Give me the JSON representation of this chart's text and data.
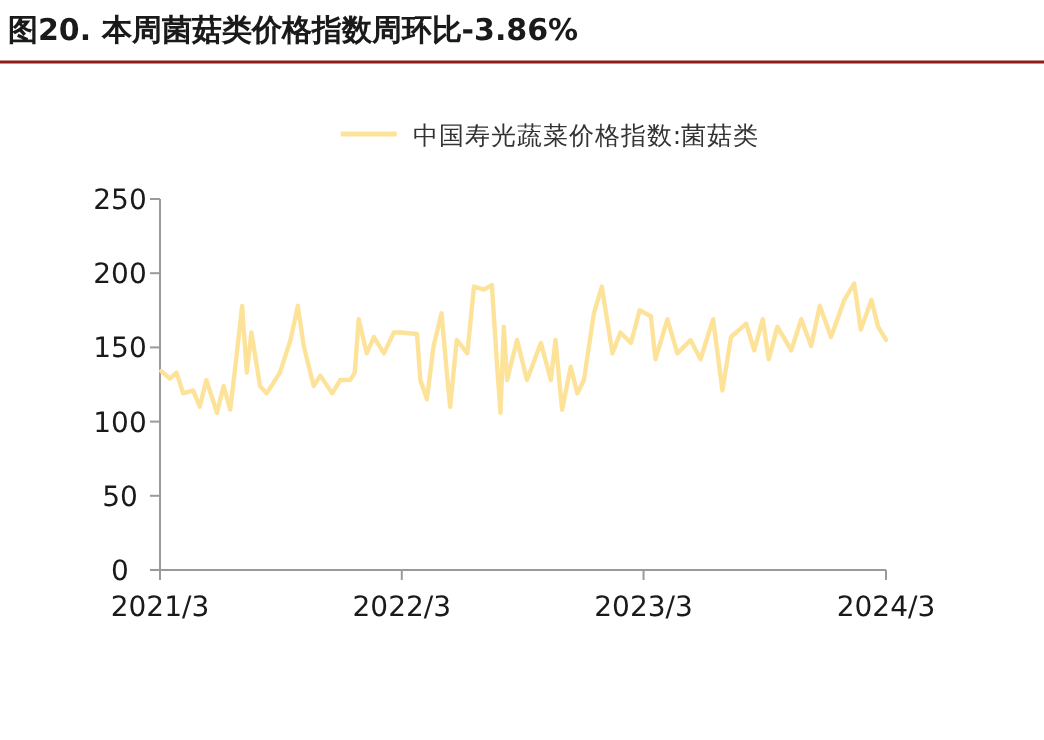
{
  "chart_data": {
    "type": "line",
    "title": "图20. 本周菌菇类价格指数周环比-3.86%",
    "x": [
      "2021-03-03",
      "2021-03-16",
      "2021-03-26",
      "2021-04-05",
      "2021-04-20",
      "2021-04-30",
      "2021-05-10",
      "2021-05-26",
      "2021-06-05",
      "2021-06-15",
      "2021-06-25",
      "2021-07-03",
      "2021-07-10",
      "2021-07-17",
      "2021-07-30",
      "2021-08-09",
      "2021-08-29",
      "2021-09-14",
      "2021-09-25",
      "2021-10-04",
      "2021-10-19",
      "2021-10-29",
      "2021-11-16",
      "2021-11-28",
      "2021-12-13",
      "2021-12-20",
      "2021-12-26",
      "2022-01-07",
      "2022-01-18",
      "2022-02-02",
      "2022-02-17",
      "2022-02-27",
      "2022-03-24",
      "2022-03-29",
      "2022-04-08",
      "2022-04-18",
      "2022-04-30",
      "2022-05-08",
      "2022-05-13",
      "2022-05-23",
      "2022-06-08",
      "2022-06-18",
      "2022-07-03",
      "2022-07-15",
      "2022-07-23",
      "2022-07-28",
      "2022-08-02",
      "2022-08-07",
      "2022-08-22",
      "2022-09-06",
      "2022-09-27",
      "2022-10-12",
      "2022-10-19",
      "2022-10-29",
      "2022-11-11",
      "2022-11-21",
      "2022-12-01",
      "2022-12-16",
      "2022-12-28",
      "2023-01-13",
      "2023-01-25",
      "2023-02-10",
      "2023-02-23",
      "2023-03-12",
      "2023-03-19",
      "2023-04-06",
      "2023-04-21",
      "2023-05-11",
      "2023-05-26",
      "2023-06-14",
      "2023-06-28",
      "2023-07-11",
      "2023-08-03",
      "2023-08-15",
      "2023-08-28",
      "2023-09-06",
      "2023-09-19",
      "2023-10-10",
      "2023-10-25",
      "2023-11-09",
      "2023-11-22",
      "2023-12-09",
      "2023-12-29",
      "2024-01-13",
      "2024-01-23",
      "2024-02-08",
      "2024-02-18",
      "2024-03-01"
    ],
    "series": [
      {
        "name": "中国寿光蔬菜价格指数:菌菇类",
        "color": "#fde39a",
        "values": [
          134,
          129,
          133,
          119,
          121,
          110,
          128,
          106,
          124,
          108,
          146,
          178,
          133,
          160,
          124,
          119,
          133,
          155,
          178,
          151,
          124,
          131,
          119,
          128,
          128,
          133,
          169,
          146,
          157,
          146,
          160,
          160,
          159,
          128,
          115,
          151,
          173,
          133,
          110,
          155,
          146,
          191,
          189,
          192,
          137,
          106,
          164,
          128,
          155,
          128,
          153,
          128,
          155,
          108,
          137,
          119,
          128,
          173,
          191,
          146,
          160,
          153,
          175,
          171,
          142,
          169,
          146,
          155,
          142,
          169,
          121,
          157,
          166,
          148,
          169,
          142,
          164,
          148,
          169,
          151,
          178,
          157,
          182,
          193,
          162,
          182,
          164,
          155
        ]
      }
    ],
    "xlim": [
      "2021-03-01",
      "2024-03-01"
    ],
    "xticks": [
      {
        "value": "2021-03-01",
        "label": "2021/3"
      },
      {
        "value": "2022-03-01",
        "label": "2022/3"
      },
      {
        "value": "2023-03-01",
        "label": "2023/3"
      },
      {
        "value": "2024-03-01",
        "label": "2024/3"
      }
    ],
    "ylim": [
      0,
      250
    ],
    "yticks": [
      0,
      50,
      100,
      150,
      200,
      250
    ],
    "legend": "top",
    "grid": false,
    "line_style": "solid",
    "marker": "none"
  }
}
